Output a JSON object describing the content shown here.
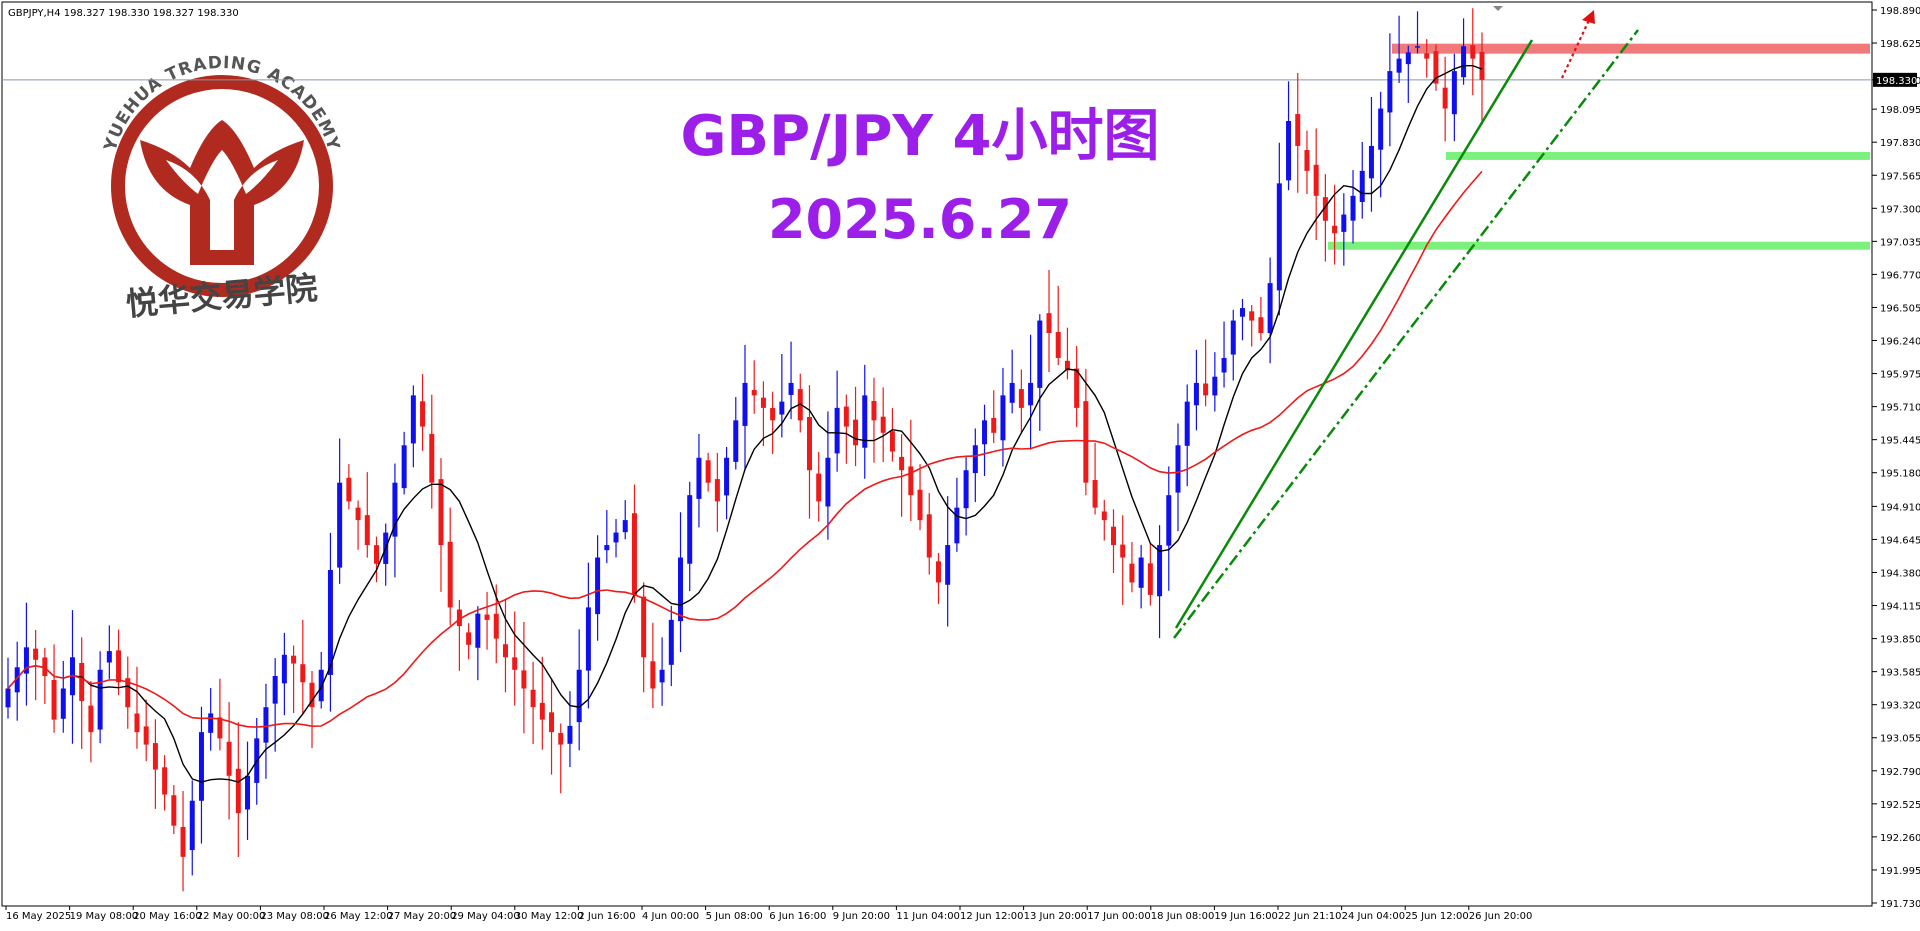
{
  "header": {
    "symbol_line": "GBPJPY,H4  198.327 198.330 198.327 198.330"
  },
  "watermark": {
    "academy_en": "YUEHUA TRADING ACADEMY",
    "academy_cn": "悦华交易学院",
    "colors": {
      "logo": "#b02a1f"
    }
  },
  "overlay": {
    "title": "GBP/JPY 4小时图",
    "date": "2025.6.27",
    "color": "#9b1fe8"
  },
  "chart_data": {
    "type": "candlestick",
    "instrument": "GBPJPY",
    "timeframe": "H4",
    "ylim": [
      191.73,
      198.89
    ],
    "price_ticks": [
      "198.890",
      "198.625",
      "198.330",
      "198.095",
      "197.830",
      "197.565",
      "197.300",
      "197.035",
      "196.770",
      "196.505",
      "196.240",
      "195.975",
      "195.710",
      "195.445",
      "195.180",
      "194.910",
      "194.645",
      "194.380",
      "194.115",
      "193.850",
      "193.585",
      "193.320",
      "193.055",
      "192.790",
      "192.525",
      "192.260",
      "191.995",
      "191.730"
    ],
    "current_price": "198.330",
    "time_labels": [
      "16 May 2025",
      "19 May 08:00",
      "20 May 16:00",
      "22 May 00:00",
      "23 May 08:00",
      "26 May 12:00",
      "27 May 20:00",
      "29 May 04:00",
      "30 May 12:00",
      "2 Jun 16:00",
      "4 Jun 00:00",
      "5 Jun 08:00",
      "6 Jun 16:00",
      "9 Jun 20:00",
      "11 Jun 04:00",
      "12 Jun 12:00",
      "13 Jun 20:00",
      "17 Jun 00:00",
      "18 Jun 08:00",
      "19 Jun 16:00",
      "22 Jun 21:10",
      "24 Jun 04:00",
      "25 Jun 12:00",
      "26 Jun 20:00"
    ],
    "candle_colors": {
      "up": "#1010ee",
      "down": "#ee1a1a"
    },
    "closes": [
      193.45,
      193.62,
      193.78,
      193.68,
      193.55,
      193.2,
      193.45,
      193.7,
      193.35,
      193.1,
      193.6,
      193.75,
      193.5,
      193.3,
      193.1,
      193.0,
      192.8,
      192.6,
      192.35,
      192.1,
      192.55,
      193.1,
      193.25,
      193.05,
      192.75,
      192.45,
      192.75,
      193.05,
      193.3,
      193.55,
      193.72,
      193.65,
      193.5,
      193.3,
      193.6,
      194.4,
      195.1,
      194.95,
      194.8,
      194.6,
      194.45,
      194.7,
      195.1,
      195.4,
      195.8,
      195.55,
      195.1,
      194.6,
      194.1,
      193.95,
      193.8,
      194.05,
      194.0,
      193.85,
      193.7,
      193.6,
      193.45,
      193.3,
      193.2,
      193.1,
      193.0,
      193.15,
      193.6,
      194.1,
      194.5,
      194.6,
      194.7,
      194.8,
      194.2,
      193.7,
      193.45,
      193.6,
      194.0,
      194.5,
      195.0,
      195.3,
      195.1,
      194.95,
      195.3,
      195.6,
      195.9,
      195.8,
      195.7,
      195.6,
      195.75,
      195.9,
      195.6,
      195.2,
      194.95,
      195.3,
      195.7,
      195.55,
      195.4,
      195.8,
      195.6,
      195.5,
      195.35,
      195.2,
      195.0,
      194.8,
      194.5,
      194.3,
      194.6,
      194.9,
      195.2,
      195.4,
      195.6,
      195.5,
      195.8,
      195.9,
      195.7,
      195.9,
      196.4,
      196.3,
      196.1,
      196.0,
      195.7,
      195.1,
      194.9,
      194.8,
      194.6,
      194.5,
      194.3,
      194.5,
      194.2,
      194.6,
      195.0,
      195.4,
      195.75,
      195.9,
      195.8,
      195.95,
      196.1,
      196.4,
      196.5,
      196.4,
      196.3,
      196.7,
      197.5,
      198.0,
      197.8,
      197.6,
      197.4,
      197.2,
      197.1,
      197.25,
      197.4,
      197.6,
      197.8,
      198.1,
      198.4,
      198.5,
      198.55,
      198.6,
      198.5,
      198.3,
      198.1,
      198.4,
      198.6,
      198.5,
      198.33
    ],
    "overlays": [
      {
        "name": "",
        "kind": "moving-average",
        "color": "#000000"
      },
      {
        "name": "",
        "kind": "moving-average",
        "color": "#ee1a1a"
      }
    ],
    "levels": [
      {
        "kind": "resistance-zone",
        "price": 198.58,
        "color": "#f07a7a"
      },
      {
        "kind": "support-zone",
        "price": 197.72,
        "color": "#7cf07c"
      },
      {
        "kind": "support-zone",
        "price": 197.0,
        "color": "#7cf07c"
      }
    ],
    "trendlines": [
      {
        "style": "solid",
        "color": "#0a8a0a"
      },
      {
        "style": "dash-dot",
        "color": "#0a8a0a"
      }
    ],
    "projection_arrow": {
      "color": "#dd1111",
      "direction": "up"
    }
  }
}
